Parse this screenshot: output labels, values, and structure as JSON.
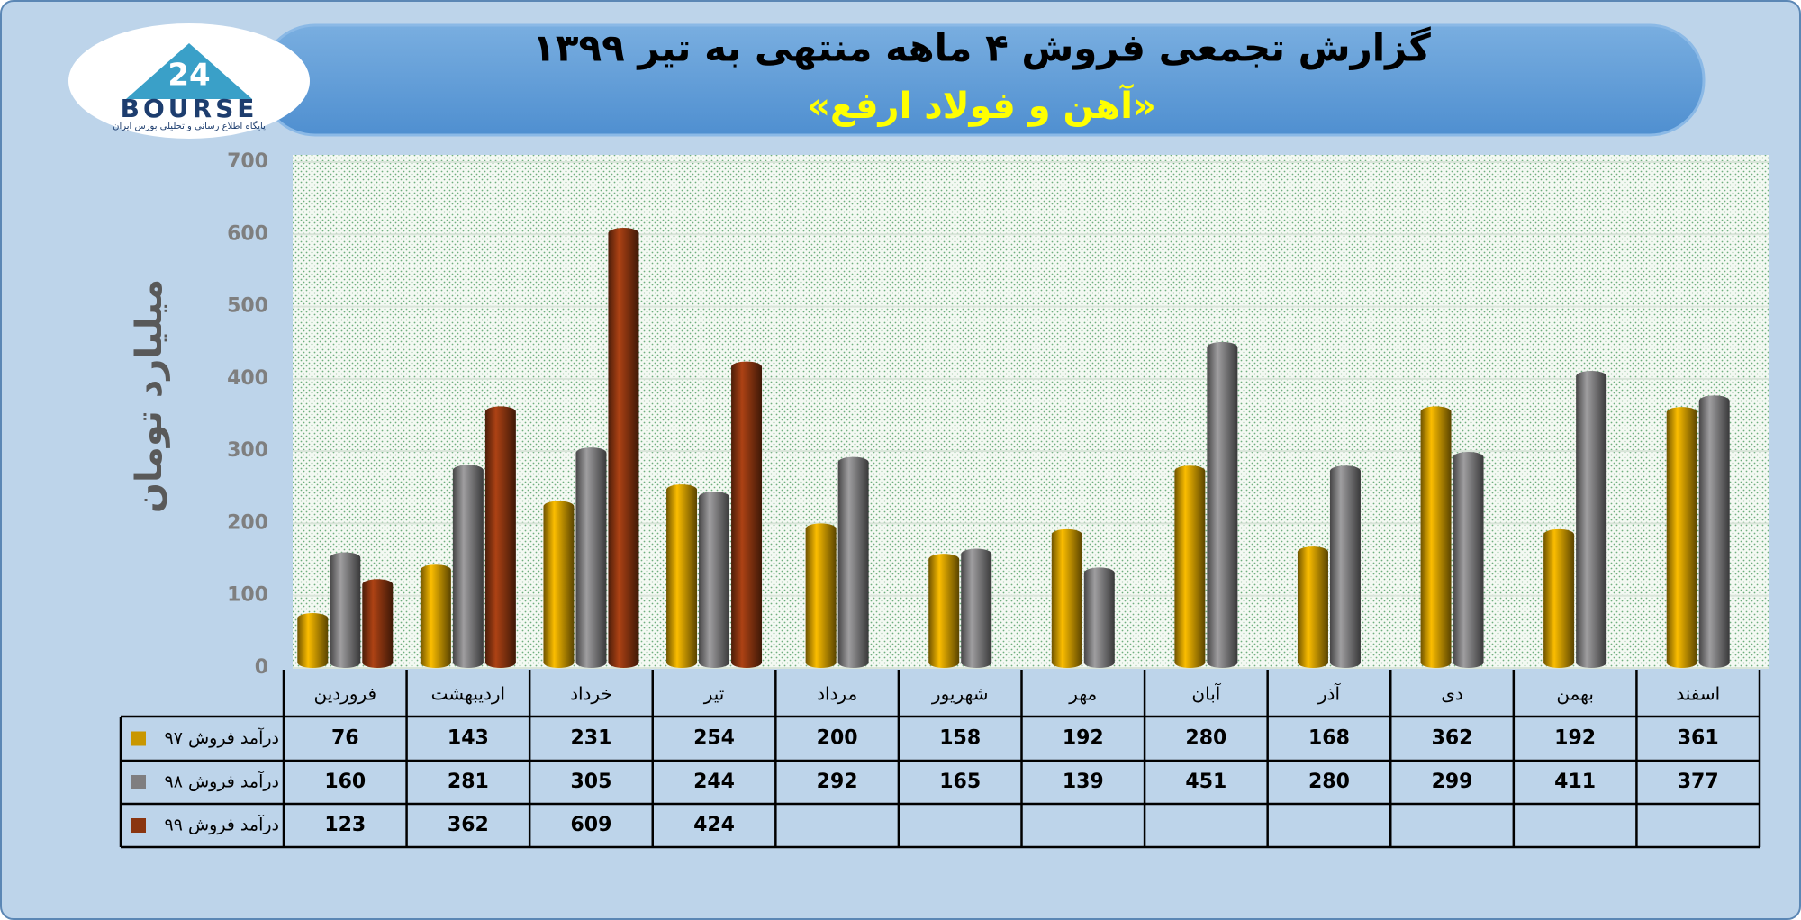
{
  "logo": {
    "number": "24",
    "name": "BOURSE",
    "tagline": "پایگاه اطلاع رسانی و تحلیلی بورس ایران"
  },
  "chart_data": {
    "type": "bar",
    "title": "گزارش تجمعی فروش ۴ ماهه منتهی به تیر ۱۳۹۹",
    "subtitle": "«آهن و فولاد ارفع»",
    "y_label": "میلیارد تومان",
    "categories": [
      "فروردین",
      "اردیبهشت",
      "خرداد",
      "تیر",
      "مرداد",
      "شهریور",
      "مهر",
      "آبان",
      "آذر",
      "دی",
      "بهمن",
      "اسفند"
    ],
    "series": [
      {
        "name": "درآمد فروش ۹۷",
        "color": "#c99700",
        "values": [
          76,
          143,
          231,
          254,
          200,
          158,
          192,
          280,
          168,
          362,
          192,
          361
        ]
      },
      {
        "name": "درآمد فروش ۹۸",
        "color": "#7f7e80",
        "values": [
          160,
          281,
          305,
          244,
          292,
          165,
          139,
          451,
          280,
          299,
          411,
          377
        ]
      },
      {
        "name": "درآمد فروش ۹۹",
        "color": "#8a3510",
        "values": [
          123,
          362,
          609,
          424,
          null,
          null,
          null,
          null,
          null,
          null,
          null,
          null
        ]
      }
    ],
    "ylim": [
      0,
      700
    ],
    "yticks": [
      0,
      100,
      200,
      300,
      400,
      500,
      600,
      700
    ],
    "grid": true
  }
}
